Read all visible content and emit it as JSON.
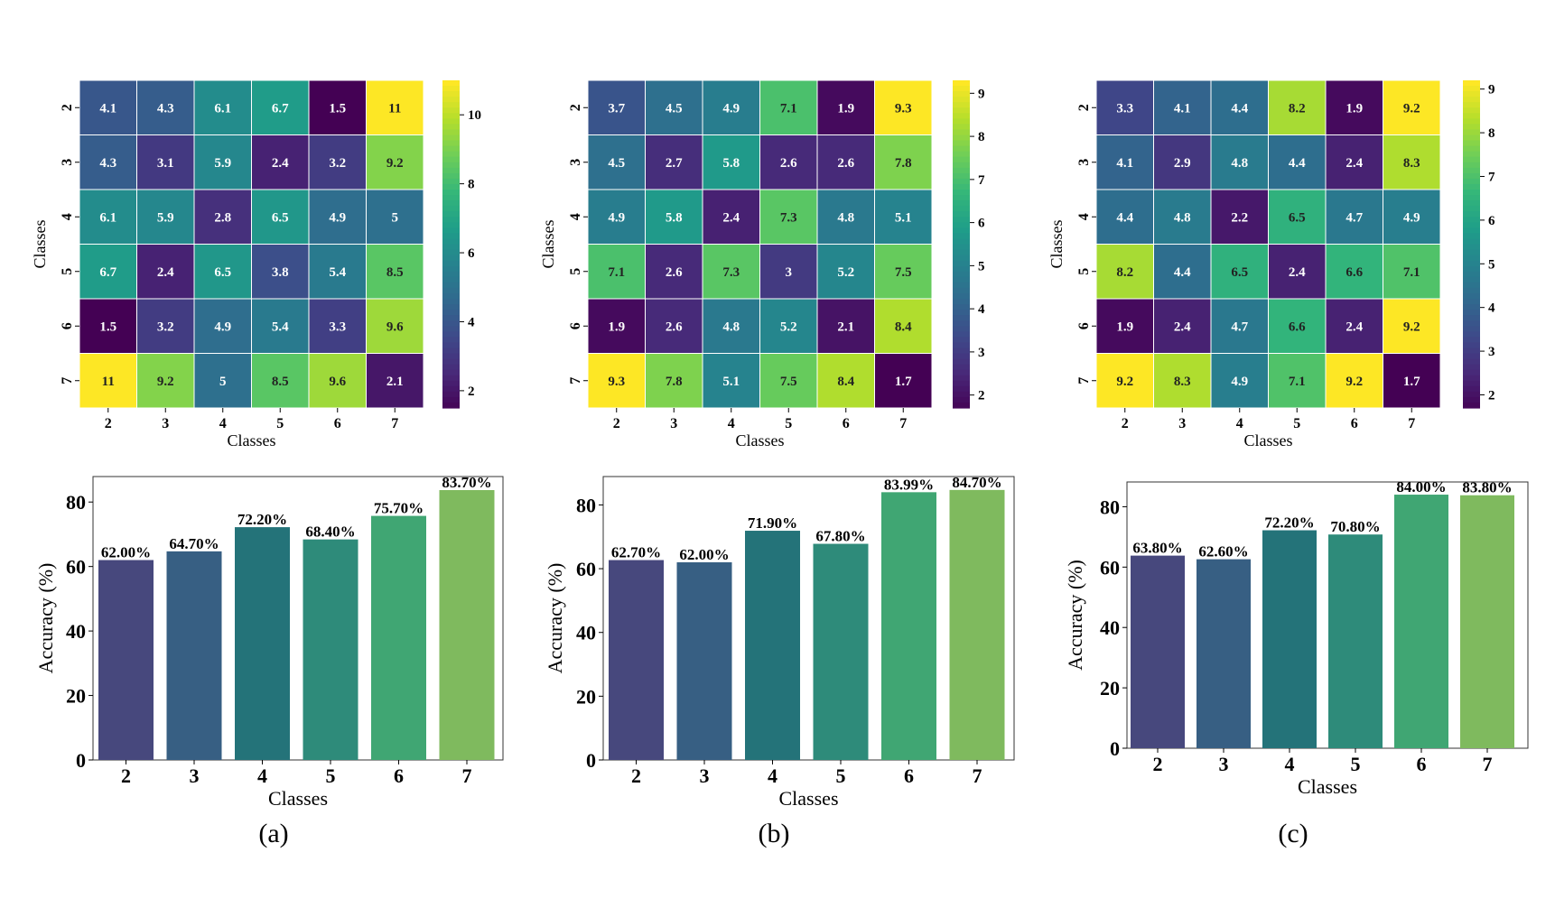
{
  "chart_data": [
    {
      "type": "heatmap",
      "panel": "a",
      "categories": [
        "2",
        "3",
        "4",
        "5",
        "6",
        "7"
      ],
      "xlabel": "Classes",
      "ylabel": "Classes",
      "matrix": [
        [
          4.1,
          4.3,
          6.1,
          6.7,
          1.5,
          11
        ],
        [
          4.3,
          3.1,
          5.9,
          2.4,
          3.2,
          9.2
        ],
        [
          6.1,
          5.9,
          2.8,
          6.5,
          4.9,
          5
        ],
        [
          6.7,
          2.4,
          6.5,
          3.8,
          5.4,
          8.5
        ],
        [
          1.5,
          3.2,
          4.9,
          5.4,
          3.3,
          9.6
        ],
        [
          11,
          9.2,
          5,
          8.5,
          9.6,
          2.1
        ]
      ],
      "labels": [
        [
          "4.1",
          "4.3",
          "6.1",
          "6.7",
          "1.5",
          "11"
        ],
        [
          "4.3",
          "3.1",
          "5.9",
          "2.4",
          "3.2",
          "9.2"
        ],
        [
          "6.1",
          "5.9",
          "2.8",
          "6.5",
          "4.9",
          "5"
        ],
        [
          "6.7",
          "2.4",
          "6.5",
          "3.8",
          "5.4",
          "8.5"
        ],
        [
          "1.5",
          "3.2",
          "4.9",
          "5.4",
          "3.3",
          "9.6"
        ],
        [
          "11",
          "9.2",
          "5",
          "8.5",
          "9.6",
          "2.1"
        ]
      ],
      "colorbar": {
        "range": [
          1.5,
          11
        ],
        "ticks": [
          "2",
          "4",
          "6",
          "8",
          "10"
        ],
        "tick_values": [
          2,
          4,
          6,
          8,
          10
        ]
      }
    },
    {
      "type": "heatmap",
      "panel": "b",
      "categories": [
        "2",
        "3",
        "4",
        "5",
        "6",
        "7"
      ],
      "xlabel": "Classes",
      "ylabel": "Classes",
      "matrix": [
        [
          3.7,
          4.5,
          4.9,
          7.1,
          1.9,
          9.3
        ],
        [
          4.5,
          2.7,
          5.8,
          2.6,
          2.6,
          7.8
        ],
        [
          4.9,
          5.8,
          2.4,
          7.3,
          4.8,
          5.1
        ],
        [
          7.1,
          2.6,
          7.3,
          3,
          5.2,
          7.5
        ],
        [
          1.9,
          2.6,
          4.8,
          5.2,
          2.1,
          8.4
        ],
        [
          9.3,
          7.8,
          5.1,
          7.5,
          8.4,
          1.7
        ]
      ],
      "labels": [
        [
          "3.7",
          "4.5",
          "4.9",
          "7.1",
          "1.9",
          "9.3"
        ],
        [
          "4.5",
          "2.7",
          "5.8",
          "2.6",
          "2.6",
          "7.8"
        ],
        [
          "4.9",
          "5.8",
          "2.4",
          "7.3",
          "4.8",
          "5.1"
        ],
        [
          "7.1",
          "2.6",
          "7.3",
          "3",
          "5.2",
          "7.5"
        ],
        [
          "1.9",
          "2.6",
          "4.8",
          "5.2",
          "2.1",
          "8.4"
        ],
        [
          "9.3",
          "7.8",
          "5.1",
          "7.5",
          "8.4",
          "1.7"
        ]
      ],
      "colorbar": {
        "range": [
          1.7,
          9.3
        ],
        "ticks": [
          "2",
          "3",
          "4",
          "5",
          "6",
          "7",
          "8",
          "9"
        ],
        "tick_values": [
          2,
          3,
          4,
          5,
          6,
          7,
          8,
          9
        ]
      }
    },
    {
      "type": "heatmap",
      "panel": "c",
      "categories": [
        "2",
        "3",
        "4",
        "5",
        "6",
        "7"
      ],
      "xlabel": "Classes",
      "ylabel": "Classes",
      "matrix": [
        [
          3.3,
          4.1,
          4.4,
          8.2,
          1.9,
          9.2
        ],
        [
          4.1,
          2.9,
          4.8,
          4.4,
          2.4,
          8.3
        ],
        [
          4.4,
          4.8,
          2.2,
          6.5,
          4.7,
          4.9
        ],
        [
          8.2,
          4.4,
          6.5,
          2.4,
          6.6,
          7.1
        ],
        [
          1.9,
          2.4,
          4.7,
          6.6,
          2.4,
          9.2
        ],
        [
          9.2,
          8.3,
          4.9,
          7.1,
          9.2,
          1.7
        ]
      ],
      "labels": [
        [
          "3.3",
          "4.1",
          "4.4",
          "8.2",
          "1.9",
          "9.2"
        ],
        [
          "4.1",
          "2.9",
          "4.8",
          "4.4",
          "2.4",
          "8.3"
        ],
        [
          "4.4",
          "4.8",
          "2.2",
          "6.5",
          "4.7",
          "4.9"
        ],
        [
          "8.2",
          "4.4",
          "6.5",
          "2.4",
          "6.6",
          "7.1"
        ],
        [
          "1.9",
          "2.4",
          "4.7",
          "6.6",
          "2.4",
          "9.2"
        ],
        [
          "9.2",
          "8.3",
          "4.9",
          "7.1",
          "9.2",
          "1.7"
        ]
      ],
      "colorbar": {
        "range": [
          1.7,
          9.2
        ],
        "ticks": [
          "2",
          "3",
          "4",
          "5",
          "6",
          "7",
          "8",
          "9"
        ],
        "tick_values": [
          2,
          3,
          4,
          5,
          6,
          7,
          8,
          9
        ]
      }
    },
    {
      "type": "bar",
      "panel": "a",
      "categories": [
        "2",
        "3",
        "4",
        "5",
        "6",
        "7"
      ],
      "values": [
        62.0,
        64.7,
        72.2,
        68.4,
        75.7,
        83.7
      ],
      "value_labels": [
        "62.00%",
        "64.70%",
        "72.20%",
        "68.40%",
        "75.70%",
        "83.70%"
      ],
      "xlabel": "Classes",
      "ylabel": "Accuracy (%)",
      "ylim": [
        0,
        87.9
      ],
      "yticks": [
        "0",
        "20",
        "40",
        "60",
        "80"
      ],
      "ytick_values": [
        0,
        20,
        40,
        60,
        80
      ]
    },
    {
      "type": "bar",
      "panel": "b",
      "categories": [
        "2",
        "3",
        "4",
        "5",
        "6",
        "7"
      ],
      "values": [
        62.7,
        62.0,
        71.9,
        67.8,
        83.99,
        84.7
      ],
      "value_labels": [
        "62.70%",
        "62.00%",
        "71.90%",
        "67.80%",
        "83.99%",
        "84.70%"
      ],
      "xlabel": "Classes",
      "ylabel": "Accuracy (%)",
      "ylim": [
        0,
        88.9
      ],
      "yticks": [
        "0",
        "20",
        "40",
        "60",
        "80"
      ],
      "ytick_values": [
        0,
        20,
        40,
        60,
        80
      ]
    },
    {
      "type": "bar",
      "panel": "c",
      "categories": [
        "2",
        "3",
        "4",
        "5",
        "6",
        "7"
      ],
      "values": [
        63.8,
        62.6,
        72.2,
        70.8,
        84.0,
        83.8
      ],
      "value_labels": [
        "63.80%",
        "62.60%",
        "72.20%",
        "70.80%",
        "84.00%",
        "83.80%"
      ],
      "xlabel": "Classes",
      "ylabel": "Accuracy (%)",
      "ylim": [
        0,
        88.2
      ],
      "yticks": [
        "0",
        "20",
        "40",
        "60",
        "80"
      ],
      "ytick_values": [
        0,
        20,
        40,
        60,
        80
      ]
    }
  ],
  "panel_labels": [
    "(a)",
    "(b)",
    "(c)"
  ],
  "colors": {
    "bars": [
      "#47487d",
      "#375f83",
      "#247379",
      "#2e8b7a",
      "#40a673",
      "#7fba5e"
    ],
    "viridis": [
      "#440154",
      "#482878",
      "#3e4989",
      "#31688e",
      "#26828e",
      "#1f9e89",
      "#35b779",
      "#6ece58",
      "#b5de2b",
      "#fde725"
    ]
  }
}
